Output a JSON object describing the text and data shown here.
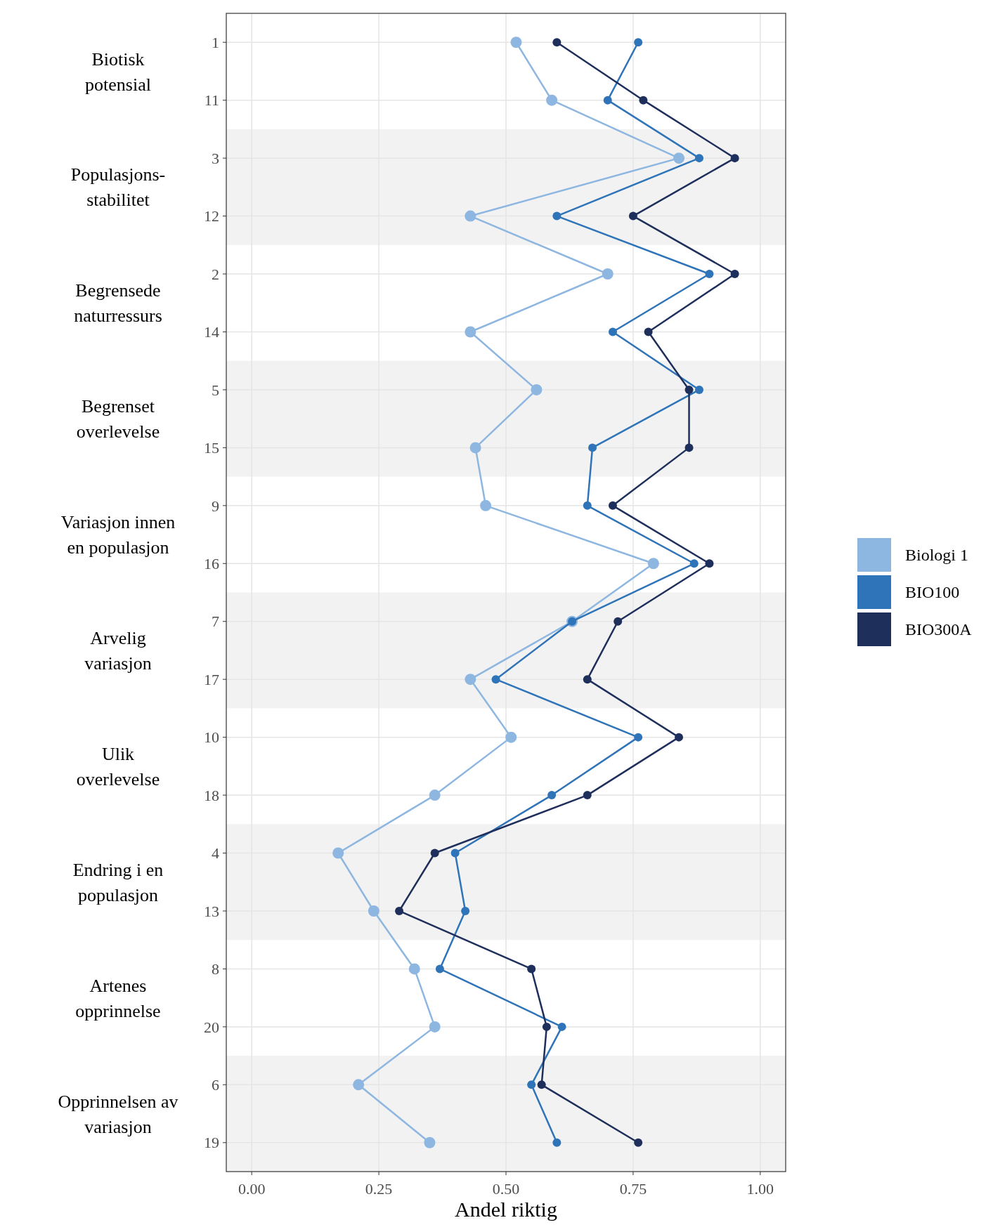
{
  "chart_data": {
    "type": "line",
    "orientation": "horizontal",
    "xlabel": "Andel riktig",
    "categories": [
      "1",
      "11",
      "3",
      "12",
      "2",
      "14",
      "5",
      "15",
      "9",
      "16",
      "7",
      "17",
      "10",
      "18",
      "4",
      "13",
      "8",
      "20",
      "6",
      "19"
    ],
    "series": [
      {
        "name": "Biologi 1",
        "color": "#8db6e0",
        "values": [
          0.52,
          0.59,
          0.84,
          0.43,
          0.7,
          0.43,
          0.56,
          0.44,
          0.46,
          0.79,
          0.63,
          0.43,
          0.51,
          0.36,
          0.17,
          0.24,
          0.32,
          0.36,
          0.21,
          0.35
        ]
      },
      {
        "name": "BIO100",
        "color": "#2f74b8",
        "values": [
          0.76,
          0.7,
          0.88,
          0.6,
          0.9,
          0.71,
          0.88,
          0.67,
          0.66,
          0.87,
          0.63,
          0.48,
          0.76,
          0.59,
          0.4,
          0.42,
          0.37,
          0.61,
          0.55,
          0.6
        ]
      },
      {
        "name": "BIO300A",
        "color": "#1f2f5c",
        "values": [
          0.6,
          0.77,
          0.95,
          0.75,
          0.95,
          0.78,
          0.86,
          0.86,
          0.71,
          0.9,
          0.72,
          0.66,
          0.84,
          0.66,
          0.36,
          0.29,
          0.55,
          0.58,
          0.57,
          0.76
        ]
      }
    ],
    "xlim": [
      -0.05,
      1.05
    ],
    "xticks": [
      {
        "value": 0,
        "label": "0.00"
      },
      {
        "value": 0.25,
        "label": "0.25"
      },
      {
        "value": 0.5,
        "label": "0.50"
      },
      {
        "value": 0.75,
        "label": "0.75"
      },
      {
        "value": 1,
        "label": "1.00"
      }
    ],
    "bands": [
      {
        "axis": "y",
        "from": "3",
        "to": "12",
        "color": "#f2f2f2"
      },
      {
        "axis": "y",
        "from": "5",
        "to": "15",
        "color": "#f2f2f2"
      },
      {
        "axis": "y",
        "from": "7",
        "to": "17",
        "color": "#f2f2f2"
      },
      {
        "axis": "y",
        "from": "4",
        "to": "13",
        "color": "#f2f2f2"
      },
      {
        "axis": "y",
        "from": "6",
        "to": "19",
        "color": "#f2f2f2"
      }
    ],
    "annotations": [
      "Biotisk\npotensial",
      "Populasjons-\nstabilitet",
      "Begrensede\nnaturressurs",
      "Begrenset\noverlevelse",
      "Variasjon innen\nen populasjon",
      "Arvelig\nvariasjon",
      "Ulik\noverlevelse",
      "Endring i en\npopulasjon",
      "Artenes\nopprinnelse",
      "Opprinnelsen av\nvariasjon"
    ],
    "grid": true,
    "marker": "circle",
    "line_style": "solid",
    "legend": "right"
  }
}
